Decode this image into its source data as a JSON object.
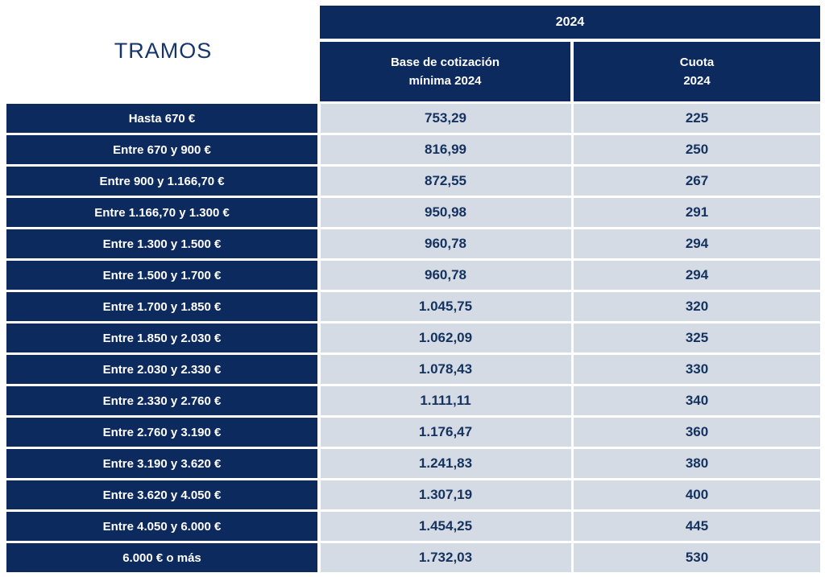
{
  "title": "TRAMOS",
  "header": {
    "year": "2024",
    "base_line1": "Base de cotización",
    "base_line2": "mínima 2024",
    "cuota_line1": "Cuota",
    "cuota_line2": "2024"
  },
  "colors": {
    "navy": "#0d2a5e",
    "light_gray": "#d5dbe4",
    "white_text": "#ffffff",
    "navy_text": "#14325f"
  },
  "rows": [
    {
      "tramo": "Hasta 670 €",
      "base": "753,29",
      "cuota": "225"
    },
    {
      "tramo": "Entre 670 y 900 €",
      "base": "816,99",
      "cuota": "250"
    },
    {
      "tramo": "Entre 900 y 1.166,70 €",
      "base": "872,55",
      "cuota": "267"
    },
    {
      "tramo": "Entre 1.166,70 y 1.300 €",
      "base": "950,98",
      "cuota": "291"
    },
    {
      "tramo": "Entre 1.300 y 1.500 €",
      "base": "960,78",
      "cuota": "294"
    },
    {
      "tramo": "Entre 1.500 y 1.700 €",
      "base": "960,78",
      "cuota": "294"
    },
    {
      "tramo": "Entre 1.700 y 1.850 €",
      "base": "1.045,75",
      "cuota": "320"
    },
    {
      "tramo": "Entre 1.850 y 2.030 €",
      "base": "1.062,09",
      "cuota": "325"
    },
    {
      "tramo": "Entre 2.030 y 2.330 €",
      "base": "1.078,43",
      "cuota": "330"
    },
    {
      "tramo": "Entre 2.330 y 2.760 €",
      "base": "1.111,11",
      "cuota": "340"
    },
    {
      "tramo": "Entre 2.760 y 3.190 €",
      "base": "1.176,47",
      "cuota": "360"
    },
    {
      "tramo": "Entre 3.190 y 3.620 €",
      "base": "1.241,83",
      "cuota": "380"
    },
    {
      "tramo": "Entre 3.620 y 4.050 €",
      "base": "1.307,19",
      "cuota": "400"
    },
    {
      "tramo": "Entre 4.050 y 6.000 €",
      "base": "1.454,25",
      "cuota": "445"
    },
    {
      "tramo": "6.000 € o más",
      "base": "1.732,03",
      "cuota": "530"
    }
  ],
  "chart_data": {
    "type": "table",
    "title": "TRAMOS / 2024",
    "columns": [
      "TRAMOS",
      "Base de cotización mínima 2024",
      "Cuota 2024"
    ],
    "categories": [
      "Hasta 670 €",
      "Entre 670 y 900 €",
      "Entre 900 y 1.166,70 €",
      "Entre 1.166,70 y 1.300 €",
      "Entre 1.300 y 1.500 €",
      "Entre 1.500 y 1.700 €",
      "Entre 1.700 y 1.850 €",
      "Entre 1.850 y 2.030 €",
      "Entre 2.030 y 2.330 €",
      "Entre 2.330 y 2.760 €",
      "Entre 2.760 y 3.190 €",
      "Entre 3.190 y 3.620 €",
      "Entre 3.620 y 4.050 €",
      "Entre 4.050 y 6.000 €",
      "6.000 € o más"
    ],
    "series": [
      {
        "name": "Base de cotización mínima 2024",
        "values": [
          753.29,
          816.99,
          872.55,
          950.98,
          960.78,
          960.78,
          1045.75,
          1062.09,
          1078.43,
          1111.11,
          1176.47,
          1241.83,
          1307.19,
          1454.25,
          1732.03
        ]
      },
      {
        "name": "Cuota 2024",
        "values": [
          225,
          250,
          267,
          291,
          294,
          294,
          320,
          325,
          330,
          340,
          360,
          380,
          400,
          445,
          530
        ]
      }
    ]
  }
}
